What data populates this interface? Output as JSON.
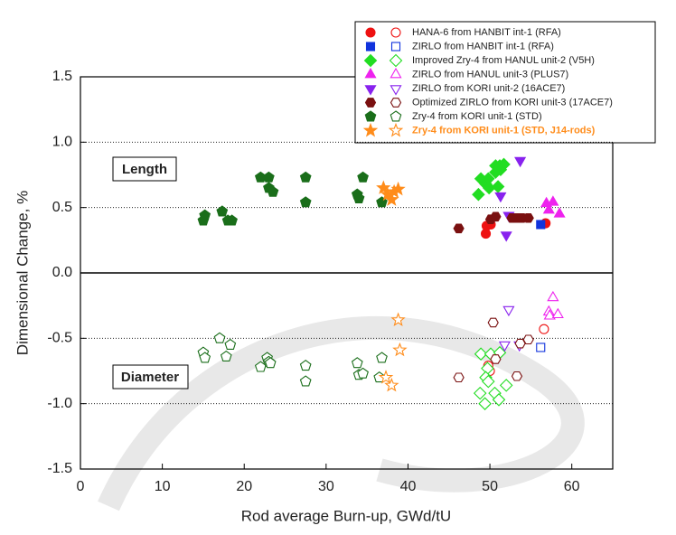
{
  "chart_data": {
    "type": "scatter",
    "xlabel": "Rod average Burn-up, GWd/tU",
    "ylabel": "Dimensional Change, %",
    "annotations": [
      "Length",
      "Diameter"
    ],
    "xlim": [
      0,
      65
    ],
    "xticks": [
      0,
      10,
      20,
      30,
      40,
      50,
      60
    ],
    "ylim": [
      -1.5,
      1.5
    ],
    "yticks": [
      {
        "value": 1.5,
        "label": "1.5"
      },
      {
        "value": 1.0,
        "label": "1.0"
      },
      {
        "value": 0.5,
        "label": "0.5"
      },
      {
        "value": 0,
        "label": "0.0"
      },
      {
        "value": -0.5,
        "label": "-0.5"
      },
      {
        "value": -1.0,
        "label": "-1.0"
      },
      {
        "value": -1.5,
        "label": "-1.5"
      }
    ],
    "grid": true,
    "series": [
      {
        "name": "HANA-6 from HANBIT int-1 (RFA)",
        "color": "#ee1111",
        "marker": "circle",
        "length": {
          "x": [
            49.5,
            49.6,
            50.1,
            56.8
          ],
          "y": [
            0.3,
            0.36,
            0.37,
            0.38
          ]
        },
        "diameter": {
          "x": [
            49.8,
            50.0,
            56.6
          ],
          "y": [
            -0.71,
            -0.75,
            -0.43
          ]
        }
      },
      {
        "name": "ZIRLO from HANBIT int-1 (RFA)",
        "color": "#1133dd",
        "marker": "square",
        "length": {
          "x": [
            56.2
          ],
          "y": [
            0.37
          ]
        },
        "diameter": {
          "x": [
            56.2
          ],
          "y": [
            -0.57
          ]
        }
      },
      {
        "name": "Improved Zry-4 from HANUL unit-2 (V5H)",
        "color": "#22dd22",
        "marker": "diamond",
        "length": {
          "x": [
            48.9,
            48.6,
            49.5,
            49.9,
            49.8,
            50.7,
            51.2,
            51.7,
            51.3,
            50.7,
            51.0
          ],
          "y": [
            0.72,
            0.6,
            0.68,
            0.65,
            0.72,
            0.82,
            0.82,
            0.83,
            0.79,
            0.77,
            0.66
          ]
        },
        "diameter": {
          "x": [
            48.9,
            50.1,
            49.7,
            49.5,
            49.8,
            48.8,
            49.4,
            50.6,
            51.1,
            52.0,
            51.2
          ],
          "y": [
            -0.62,
            -0.62,
            -0.73,
            -0.8,
            -0.83,
            -0.92,
            -1.0,
            -0.92,
            -0.97,
            -0.86,
            -0.61
          ]
        }
      },
      {
        "name": "ZIRLO from HANUL unit-3 (PLUS7)",
        "color": "#ee22ee",
        "marker": "triangle",
        "length": {
          "x": [
            56.9,
            57.2,
            57.7,
            58.5
          ],
          "y": [
            0.53,
            0.48,
            0.54,
            0.45
          ]
        },
        "diameter": {
          "x": [
            57.7,
            57.2,
            57.3,
            58.3
          ],
          "y": [
            -0.19,
            -0.3,
            -0.33,
            -0.32
          ]
        }
      },
      {
        "name": "ZIRLO from KORI unit-2 (16ACE7)",
        "color": "#8822ee",
        "marker": "triangle-down",
        "length": {
          "x": [
            53.7,
            51.3,
            52.3,
            52.0
          ],
          "y": [
            0.86,
            0.59,
            0.44,
            0.29
          ]
        },
        "diameter": {
          "x": [
            52.3,
            51.8,
            53.6
          ],
          "y": [
            -0.28,
            -0.55,
            -0.55
          ]
        }
      },
      {
        "name": "Optimized ZIRLO from KORI unit-3 (17ACE7)",
        "color": "#7a1010",
        "marker": "hexagon",
        "length": {
          "x": [
            46.2,
            50.1,
            50.7,
            52.7,
            53.3,
            53.9,
            54.7
          ],
          "y": [
            0.34,
            0.41,
            0.43,
            0.42,
            0.42,
            0.42,
            0.42
          ]
        },
        "diameter": {
          "x": [
            46.2,
            50.4,
            50.7,
            53.3,
            53.7,
            54.7
          ],
          "y": [
            -0.8,
            -0.38,
            -0.66,
            -0.79,
            -0.54,
            -0.51
          ]
        }
      },
      {
        "name": "Zry-4 from KORI unit-1 (STD)",
        "color": "#1a6e1a",
        "marker": "pentagon",
        "length": {
          "x": [
            15.0,
            15.2,
            17.3,
            18.0,
            18.5,
            22.0,
            23.0,
            23.0,
            23.5,
            27.5,
            27.5,
            33.8,
            34.0,
            34.5,
            36.8
          ],
          "y": [
            0.4,
            0.44,
            0.47,
            0.4,
            0.4,
            0.73,
            0.73,
            0.65,
            0.62,
            0.73,
            0.54,
            0.6,
            0.57,
            0.73,
            0.54
          ]
        },
        "diameter": {
          "x": [
            15.0,
            15.2,
            17.0,
            18.3,
            17.8,
            22.0,
            22.8,
            23.0,
            23.2,
            27.5,
            27.5,
            33.8,
            34.0,
            34.5,
            36.5,
            36.8
          ],
          "y": [
            -0.61,
            -0.65,
            -0.5,
            -0.55,
            -0.64,
            -0.72,
            -0.65,
            -0.68,
            -0.69,
            -0.71,
            -0.83,
            -0.69,
            -0.78,
            -0.77,
            -0.8,
            -0.65
          ]
        }
      },
      {
        "name": "Zry-4 from KORI unit-1 (STD, J14-rods)",
        "color": "#ff8c1a",
        "marker": "star",
        "bold": true,
        "length": {
          "x": [
            37.0,
            37.5,
            38.0,
            38.3,
            38.8
          ],
          "y": [
            0.65,
            0.6,
            0.56,
            0.62,
            0.64
          ]
        },
        "diameter": {
          "x": [
            37.3,
            38.0,
            38.8,
            39.0
          ],
          "y": [
            -0.8,
            -0.86,
            -0.36,
            -0.59
          ]
        }
      }
    ]
  }
}
